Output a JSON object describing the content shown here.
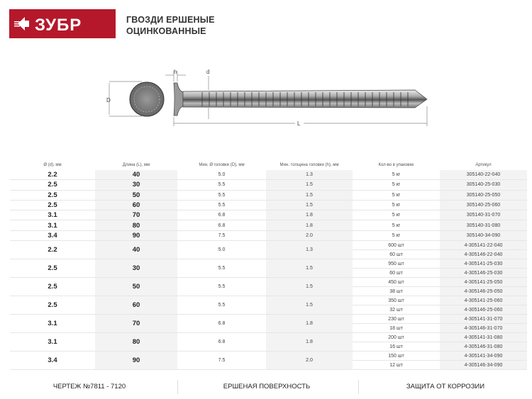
{
  "brand": {
    "logo_text": "ЗУБР",
    "color": "#b5182b"
  },
  "title": {
    "line1": "ГВОЗДИ ЕРШЕНЫЕ",
    "line2": "ОЦИНКОВАННЫЕ"
  },
  "drawing": {
    "labels": {
      "D": "D",
      "h": "h",
      "d": "d",
      "L": "L"
    }
  },
  "table": {
    "headers": [
      "Ø (d), мм",
      "Длина (L), мм",
      "Мин. Ø головки (D), мм",
      "Мин. толщина головки (h), мм",
      "Кол-во в упаковке",
      "Артикул"
    ],
    "rows_single": [
      [
        "2.2",
        "40",
        "5.0",
        "1.3",
        "5 кг",
        "305140-22-040"
      ],
      [
        "2.5",
        "30",
        "5.5",
        "1.5",
        "5 кг",
        "305140-25-030"
      ],
      [
        "2.5",
        "50",
        "5.5",
        "1.5",
        "5 кг",
        "305140-25-050"
      ],
      [
        "2.5",
        "60",
        "5.5",
        "1.5",
        "5 кг",
        "305140-25-060"
      ],
      [
        "3.1",
        "70",
        "6.8",
        "1.8",
        "5 кг",
        "305140-31-070"
      ],
      [
        "3.1",
        "80",
        "6.8",
        "1.8",
        "5 кг",
        "305140-31-080"
      ],
      [
        "3.4",
        "90",
        "7.5",
        "2.0",
        "5 кг",
        "305140-34-090"
      ]
    ],
    "rows_grouped": [
      {
        "d": "2.2",
        "L": "40",
        "D": "5.0",
        "h": "1.3",
        "packs": [
          [
            "600 шт",
            "4-305141-22-040"
          ],
          [
            "60 шт",
            "4-305146-22-040"
          ]
        ]
      },
      {
        "d": "2.5",
        "L": "30",
        "D": "5.5",
        "h": "1.5",
        "packs": [
          [
            "950 шт",
            "4-305141-25-030"
          ],
          [
            "60 шт",
            "4-305146-25-030"
          ]
        ]
      },
      {
        "d": "2.5",
        "L": "50",
        "D": "5.5",
        "h": "1.5",
        "packs": [
          [
            "450 шт",
            "4-305141-25-050"
          ],
          [
            "38 шт",
            "4-305146-25-050"
          ]
        ]
      },
      {
        "d": "2.5",
        "L": "60",
        "D": "5.5",
        "h": "1.5",
        "packs": [
          [
            "350 шт",
            "4-305141-25-060"
          ],
          [
            "32 шт",
            "4-305146-25-060"
          ]
        ]
      },
      {
        "d": "3.1",
        "L": "70",
        "D": "6.8",
        "h": "1.8",
        "packs": [
          [
            "230 шт",
            "4-305141-31-070"
          ],
          [
            "18 шт",
            "4-305146-31-070"
          ]
        ]
      },
      {
        "d": "3.1",
        "L": "80",
        "D": "6.8",
        "h": "1.8",
        "packs": [
          [
            "200 шт",
            "4-305141-31-080"
          ],
          [
            "16 шт",
            "4-305146-31-080"
          ]
        ]
      },
      {
        "d": "3.4",
        "L": "90",
        "D": "7.5",
        "h": "2.0",
        "packs": [
          [
            "150 шт",
            "4-305141-34-090"
          ],
          [
            "12 шт",
            "4-305146-34-090"
          ]
        ]
      }
    ]
  },
  "footer": [
    "ЧЕРТЕЖ №7811 - 7120",
    "ЕРШЕНАЯ ПОВЕРХНОСТЬ",
    "ЗАЩИТА ОТ КОРРОЗИИ"
  ]
}
